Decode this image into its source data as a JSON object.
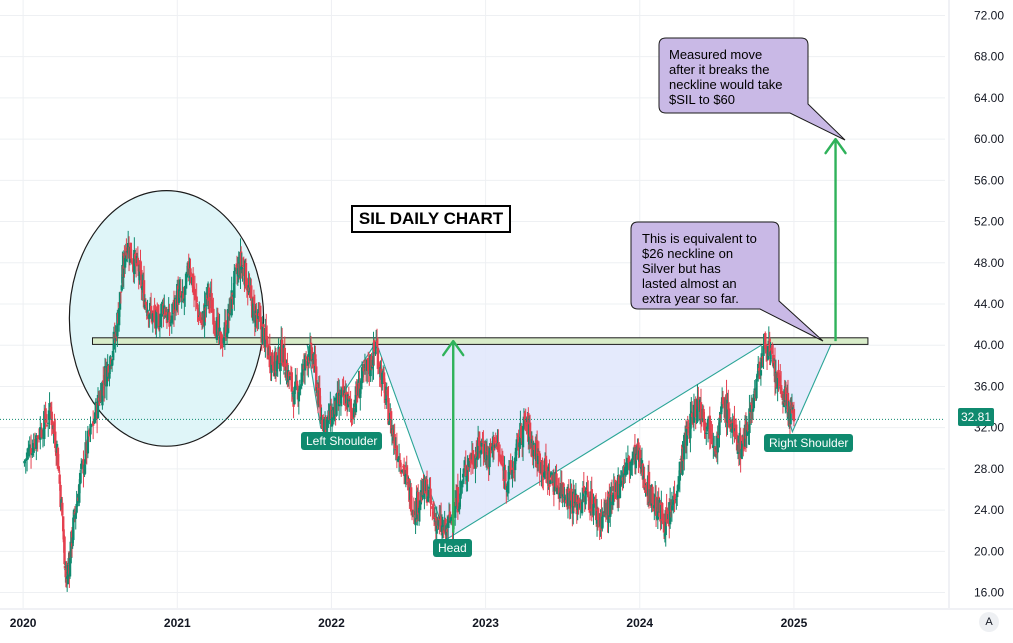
{
  "chart_data": {
    "type": "candlestick",
    "title": "SIL DAILY CHART",
    "ticker": "$SIL",
    "last_price": "32.81",
    "y_ticks": [
      "72.00",
      "68.00",
      "64.00",
      "60.00",
      "56.00",
      "52.00",
      "48.00",
      "44.00",
      "40.00",
      "36.00",
      "32.00",
      "28.00",
      "24.00",
      "20.00",
      "16.00"
    ],
    "x_ticks": [
      "2020",
      "2021",
      "2022",
      "2023",
      "2024",
      "2025"
    ],
    "ylim": [
      14.5,
      73.5
    ],
    "xlim": [
      2019.85,
      2025.98
    ],
    "neckline": 40.4,
    "last_price_value": 32.81,
    "pattern": {
      "left_shoulder": {
        "x": 2021.93,
        "y": 32.0
      },
      "head": {
        "x": 2022.75,
        "y": 21.2
      },
      "right_shoulder": {
        "x": 2024.99,
        "y": 31.6
      },
      "neckline_left_touch": {
        "x": 2022.29,
        "y": 40.3
      },
      "neckline_right_touch": {
        "x": 2024.82,
        "y": 40.3
      },
      "breakout": {
        "x": 2025.25,
        "y": 40.4
      }
    },
    "measured_move": {
      "from": 40.4,
      "target": 60.0
    },
    "head_depth_arrow": {
      "x": 2022.79,
      "from": 21.8,
      "to": 40.4
    },
    "price_path": [
      [
        2020.0,
        28.5
      ],
      [
        2020.06,
        30.5
      ],
      [
        2020.12,
        32.0
      ],
      [
        2020.18,
        33.5
      ],
      [
        2020.22,
        30.0
      ],
      [
        2020.26,
        22.0
      ],
      [
        2020.28,
        17.0
      ],
      [
        2020.3,
        19.0
      ],
      [
        2020.33,
        23.0
      ],
      [
        2020.37,
        27.0
      ],
      [
        2020.42,
        30.5
      ],
      [
        2020.48,
        34.0
      ],
      [
        2020.52,
        36.5
      ],
      [
        2020.56,
        38.5
      ],
      [
        2020.6,
        41.0
      ],
      [
        2020.64,
        46.0
      ],
      [
        2020.67,
        50.0
      ],
      [
        2020.71,
        48.5
      ],
      [
        2020.75,
        47.0
      ],
      [
        2020.79,
        44.5
      ],
      [
        2020.83,
        43.0
      ],
      [
        2020.87,
        42.0
      ],
      [
        2020.91,
        44.0
      ],
      [
        2020.95,
        42.0
      ],
      [
        2021.0,
        45.0
      ],
      [
        2021.04,
        44.0
      ],
      [
        2021.08,
        48.0
      ],
      [
        2021.12,
        44.0
      ],
      [
        2021.16,
        42.0
      ],
      [
        2021.2,
        45.0
      ],
      [
        2021.24,
        43.0
      ],
      [
        2021.28,
        40.0
      ],
      [
        2021.33,
        42.5
      ],
      [
        2021.37,
        46.0
      ],
      [
        2021.41,
        48.0
      ],
      [
        2021.44,
        47.0
      ],
      [
        2021.48,
        44.0
      ],
      [
        2021.52,
        42.5
      ],
      [
        2021.56,
        41.0
      ],
      [
        2021.6,
        39.0
      ],
      [
        2021.64,
        38.0
      ],
      [
        2021.68,
        39.5
      ],
      [
        2021.72,
        37.0
      ],
      [
        2021.76,
        35.0
      ],
      [
        2021.8,
        36.5
      ],
      [
        2021.85,
        39.5
      ],
      [
        2021.89,
        38.0
      ],
      [
        2021.93,
        33.0
      ],
      [
        2021.97,
        32.5
      ],
      [
        2022.01,
        33.5
      ],
      [
        2022.05,
        34.5
      ],
      [
        2022.09,
        35.0
      ],
      [
        2022.13,
        33.5
      ],
      [
        2022.17,
        35.5
      ],
      [
        2022.21,
        37.0
      ],
      [
        2022.26,
        38.5
      ],
      [
        2022.29,
        40.0
      ],
      [
        2022.33,
        36.5
      ],
      [
        2022.37,
        33.5
      ],
      [
        2022.41,
        30.5
      ],
      [
        2022.46,
        28.5
      ],
      [
        2022.5,
        26.0
      ],
      [
        2022.54,
        24.0
      ],
      [
        2022.58,
        25.5
      ],
      [
        2022.62,
        26.0
      ],
      [
        2022.66,
        23.5
      ],
      [
        2022.7,
        22.5
      ],
      [
        2022.74,
        21.8
      ],
      [
        2022.78,
        23.5
      ],
      [
        2022.82,
        25.0
      ],
      [
        2022.86,
        27.5
      ],
      [
        2022.9,
        29.0
      ],
      [
        2022.94,
        29.5
      ],
      [
        2022.98,
        30.5
      ],
      [
        2023.02,
        29.0
      ],
      [
        2023.06,
        31.0
      ],
      [
        2023.1,
        28.5
      ],
      [
        2023.14,
        27.0
      ],
      [
        2023.18,
        28.0
      ],
      [
        2023.22,
        31.0
      ],
      [
        2023.26,
        32.5
      ],
      [
        2023.3,
        30.5
      ],
      [
        2023.34,
        29.0
      ],
      [
        2023.38,
        28.0
      ],
      [
        2023.42,
        27.0
      ],
      [
        2023.46,
        26.5
      ],
      [
        2023.5,
        26.0
      ],
      [
        2023.54,
        25.5
      ],
      [
        2023.58,
        24.5
      ],
      [
        2023.62,
        25.0
      ],
      [
        2023.66,
        25.5
      ],
      [
        2023.7,
        24.5
      ],
      [
        2023.74,
        23.0
      ],
      [
        2023.78,
        24.0
      ],
      [
        2023.82,
        24.5
      ],
      [
        2023.86,
        26.5
      ],
      [
        2023.9,
        28.0
      ],
      [
        2023.94,
        28.5
      ],
      [
        2023.98,
        29.5
      ],
      [
        2024.02,
        27.5
      ],
      [
        2024.06,
        26.0
      ],
      [
        2024.1,
        24.5
      ],
      [
        2024.14,
        23.5
      ],
      [
        2024.18,
        22.5
      ],
      [
        2024.22,
        25.0
      ],
      [
        2024.26,
        28.0
      ],
      [
        2024.3,
        31.0
      ],
      [
        2024.34,
        33.0
      ],
      [
        2024.38,
        34.5
      ],
      [
        2024.42,
        33.0
      ],
      [
        2024.46,
        32.0
      ],
      [
        2024.5,
        30.5
      ],
      [
        2024.54,
        34.5
      ],
      [
        2024.58,
        33.0
      ],
      [
        2024.62,
        31.0
      ],
      [
        2024.66,
        30.0
      ],
      [
        2024.7,
        32.5
      ],
      [
        2024.74,
        35.0
      ],
      [
        2024.78,
        38.0
      ],
      [
        2024.82,
        40.5
      ],
      [
        2024.86,
        38.0
      ],
      [
        2024.9,
        36.0
      ],
      [
        2024.94,
        35.0
      ],
      [
        2024.97,
        33.5
      ],
      [
        2025.0,
        32.8
      ]
    ]
  },
  "annotations": {
    "measured_move_note": "Measured move\nafter it breaks the\nneckline would take\n$SIL to $60",
    "equivalence_note": "This is equivalent to\n$26 neckline on\nSilver but has\nlasted almost an\nextra year so far.",
    "left_shoulder": "Left Shoulder",
    "head": "Head",
    "right_shoulder": "Right Shoulder"
  },
  "controls": {
    "auto_scale": "A"
  },
  "colors": {
    "up": "#0f8a6f",
    "down": "#e5404f",
    "neckline_fill": "#d8ecc9",
    "pattern_fill": "#dfe6fb",
    "arrow": "#2fb25a",
    "note_fill": "#c9b9e6",
    "circle_fill": "#dff5f8",
    "grid": "#eef0f3"
  }
}
